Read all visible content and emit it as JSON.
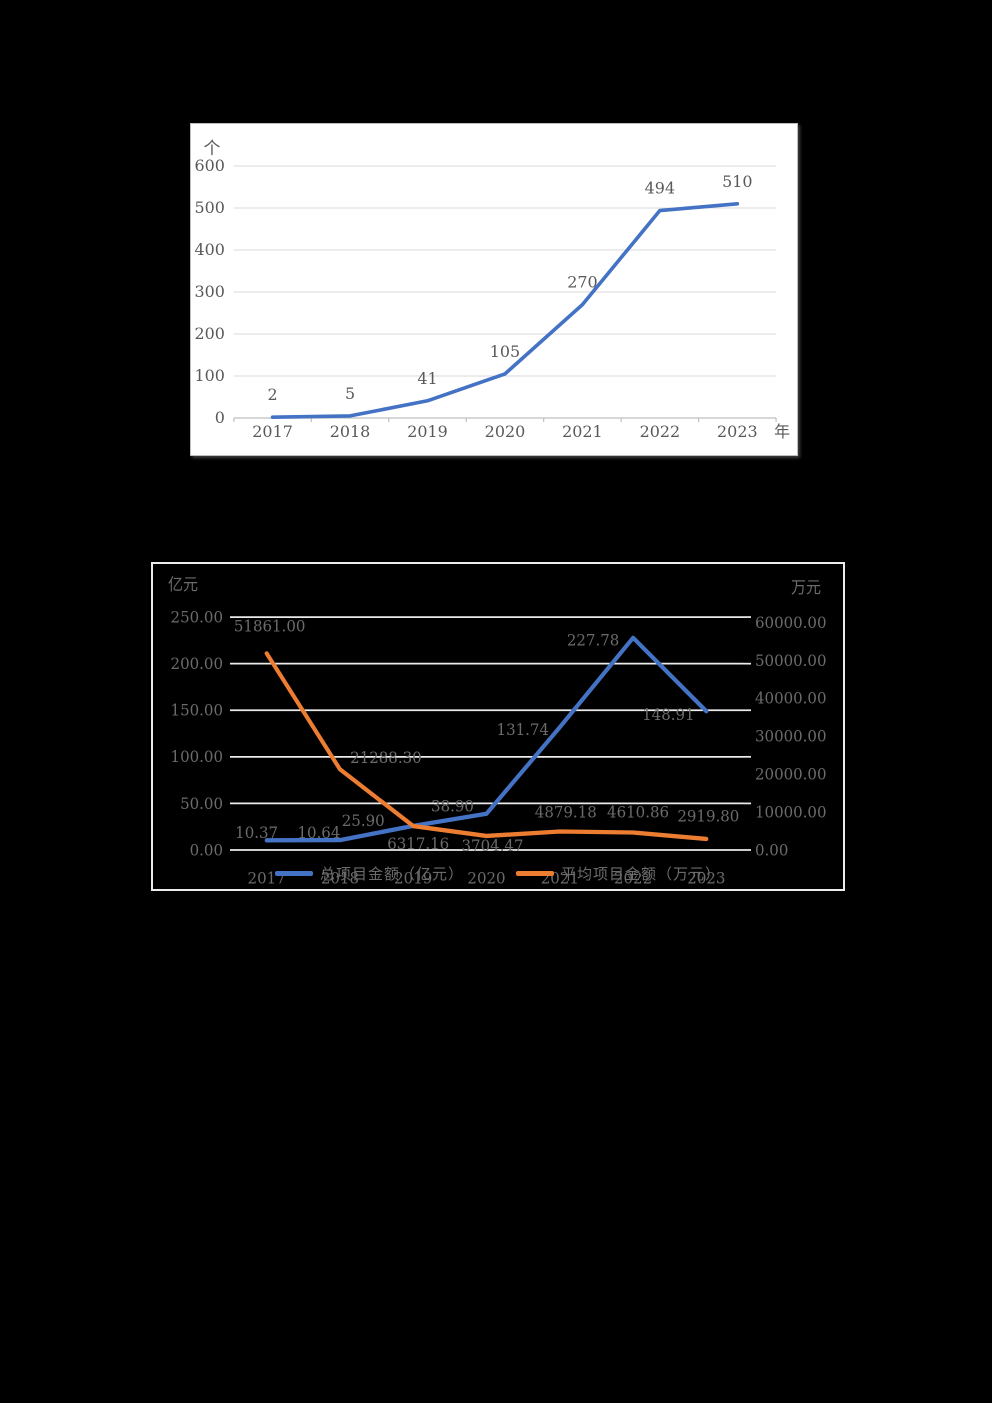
{
  "page": {
    "background_color": "#000000"
  },
  "chart_data": [
    {
      "id": "project_count_chart",
      "type": "line",
      "title": "",
      "y_unit": "个",
      "x_unit": "年",
      "categories": [
        "2017",
        "2018",
        "2019",
        "2020",
        "2021",
        "2022",
        "2023"
      ],
      "series": [
        {
          "name": "",
          "values": [
            2,
            5,
            41,
            105,
            270,
            494,
            510
          ],
          "data_labels": [
            "2",
            "5",
            "41",
            "105",
            "270",
            "494",
            "510"
          ],
          "color": "#4472c4"
        }
      ],
      "ylim": [
        0,
        600
      ],
      "yticks": [
        "0",
        "100",
        "200",
        "300",
        "400",
        "500",
        "600"
      ],
      "grid": true,
      "legend_position": "none",
      "panel_background": "#ffffff",
      "text_color": "#595959",
      "grid_color": "#d9d9d9",
      "axis_color": "#bfbfbf"
    },
    {
      "id": "project_amount_chart",
      "type": "line",
      "title": "",
      "left_unit": "亿元",
      "right_unit": "万元",
      "categories": [
        "2017",
        "2018",
        "2019",
        "2020",
        "2021",
        "2022",
        "2023"
      ],
      "left_ylim": [
        0,
        250
      ],
      "left_yticks": [
        "0.00",
        "50.00",
        "100.00",
        "150.00",
        "200.00",
        "250.00"
      ],
      "right_ylim": [
        0,
        60000
      ],
      "right_yticks": [
        "0.00",
        "10000.00",
        "20000.00",
        "30000.00",
        "40000.00",
        "50000.00",
        "60000.00"
      ],
      "series": [
        {
          "name": "总项目金额（亿元）",
          "axis": "left",
          "color": "#4472c4",
          "values": [
            10.37,
            10.64,
            25.9,
            38.9,
            131.74,
            227.78,
            148.91
          ],
          "data_labels": [
            "10.37",
            "10.64",
            "25.90",
            "38.90",
            "131.74",
            "227.78",
            "148.91"
          ],
          "label_offsets": [
            [
              -10,
              -7
            ],
            [
              -21,
              -7
            ],
            [
              -50,
              -5
            ],
            [
              -34,
              -7
            ],
            [
              -37,
              2
            ],
            [
              -40,
              2
            ],
            [
              -38,
              3
            ]
          ]
        },
        {
          "name": "平均项目金额（万元）",
          "axis": "right",
          "color": "#ed7d31",
          "values": [
            51861.0,
            21288.3,
            6317.16,
            3704.47,
            4879.18,
            4610.86,
            2919.8
          ],
          "data_labels": [
            "51861.00",
            "21288.30",
            "6317.16",
            "3704.47",
            "4879.18",
            "4610.86",
            "2919.80"
          ],
          "label_offsets": [
            [
              3,
              -25
            ],
            [
              46,
              -11
            ],
            [
              5,
              16
            ],
            [
              6,
              9
            ],
            [
              6,
              -18
            ],
            [
              5,
              -19
            ],
            [
              2,
              -21
            ]
          ]
        }
      ],
      "grid": true,
      "legend_position": "bottom",
      "panel_background": "#000000",
      "text_color": "#6b6b6b",
      "grid_color": "#ebebeb"
    }
  ]
}
